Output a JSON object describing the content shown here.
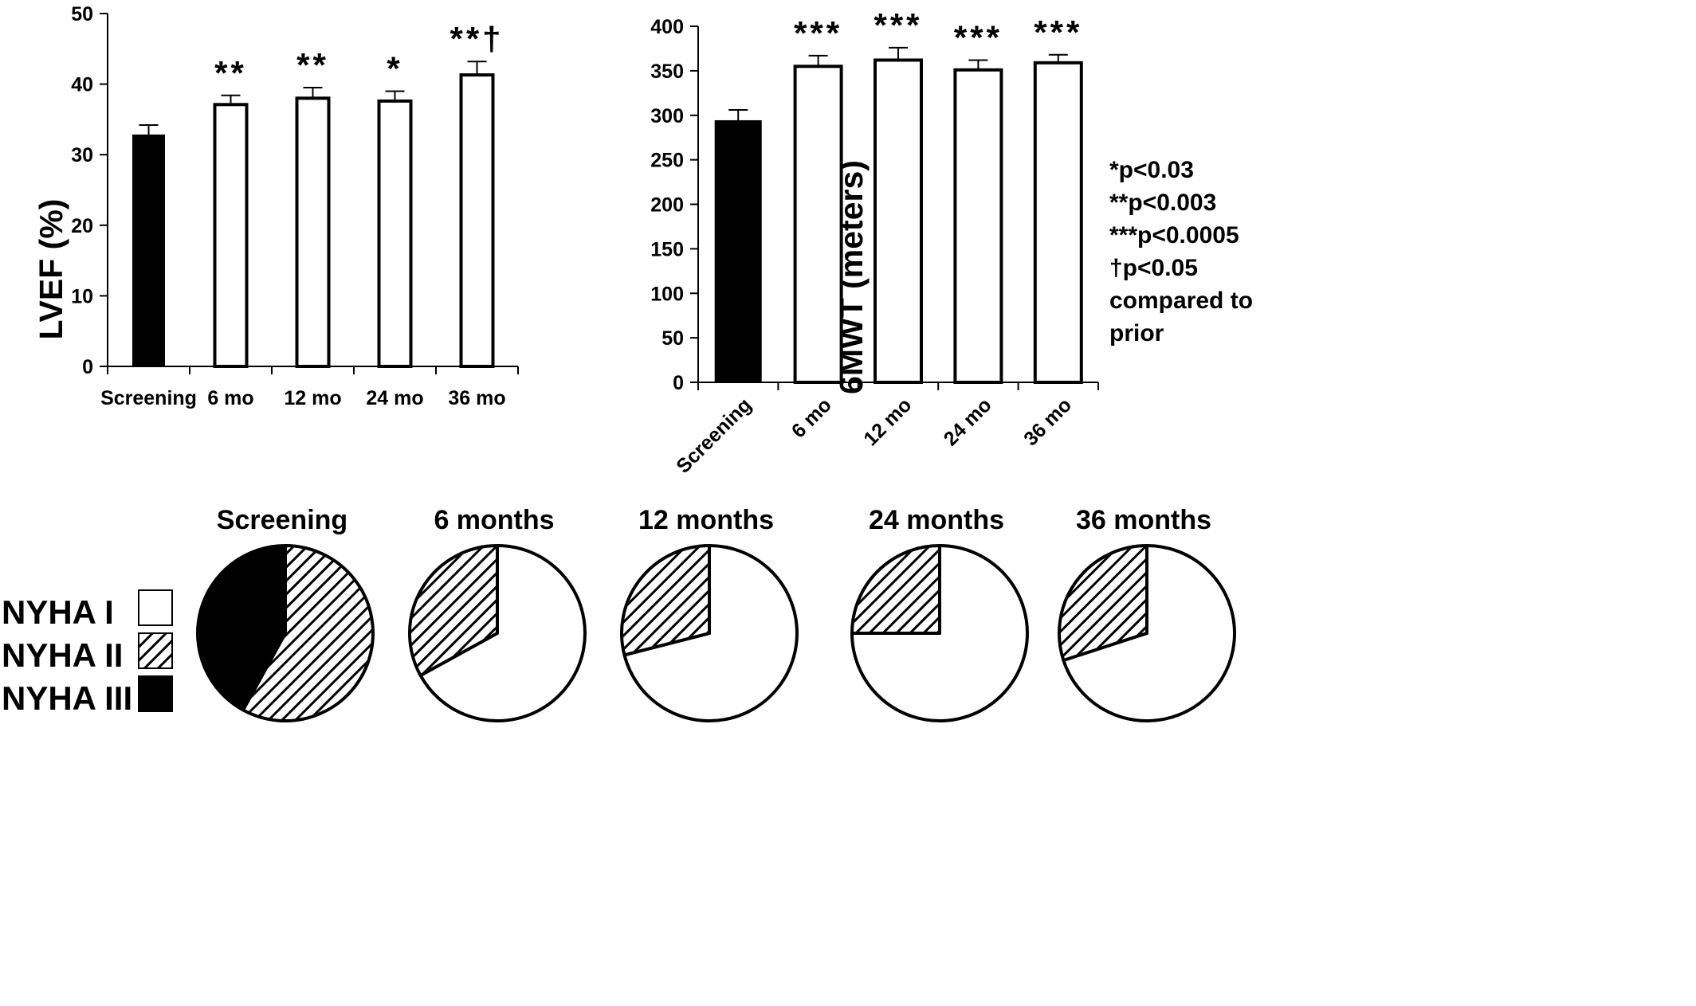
{
  "chart_data": [
    {
      "type": "bar",
      "ylabel": "LVEF (%)",
      "ylim": [
        0,
        50
      ],
      "yticks": [
        "0",
        "10",
        "20",
        "30",
        "40",
        "50"
      ],
      "categories": [
        "Screening",
        "6 mo",
        "12 mo",
        "24 mo",
        "36 mo"
      ],
      "values": [
        32.8,
        37.1,
        38.0,
        37.6,
        41.3
      ],
      "errors": [
        1.4,
        1.3,
        1.5,
        1.4,
        1.9
      ],
      "significance": [
        "",
        "**",
        "**",
        "*",
        "**†"
      ],
      "bar_colors": [
        "#000000",
        "#ffffff",
        "#ffffff",
        "#ffffff",
        "#ffffff"
      ],
      "grid": false
    },
    {
      "type": "bar",
      "ylabel": "6MWT (meters)",
      "ylim": [
        0,
        400
      ],
      "yticks": [
        "0",
        "50",
        "100",
        "150",
        "200",
        "250",
        "300",
        "350",
        "400"
      ],
      "categories": [
        "Screening",
        "6 mo",
        "12 mo",
        "24 mo",
        "36 mo"
      ],
      "values": [
        294,
        355,
        362,
        351,
        359
      ],
      "errors": [
        12,
        12,
        14,
        11,
        9
      ],
      "significance": [
        "",
        "***",
        "***",
        "***",
        "***"
      ],
      "bar_colors": [
        "#000000",
        "#ffffff",
        "#ffffff",
        "#ffffff",
        "#ffffff"
      ],
      "grid": false,
      "tick_rotation": -45
    },
    {
      "type": "pie",
      "title": "Screening",
      "slices": [
        {
          "label": "NYHA I",
          "value": 0
        },
        {
          "label": "NYHA II",
          "value": 58
        },
        {
          "label": "NYHA III",
          "value": 42
        }
      ]
    },
    {
      "type": "pie",
      "title": "6 months",
      "slices": [
        {
          "label": "NYHA I",
          "value": 67
        },
        {
          "label": "NYHA II",
          "value": 33
        },
        {
          "label": "NYHA III",
          "value": 0
        }
      ]
    },
    {
      "type": "pie",
      "title": "12 months",
      "slices": [
        {
          "label": "NYHA I",
          "value": 71
        },
        {
          "label": "NYHA II",
          "value": 29
        },
        {
          "label": "NYHA III",
          "value": 0
        }
      ]
    },
    {
      "type": "pie",
      "title": "24 months",
      "slices": [
        {
          "label": "NYHA I",
          "value": 75
        },
        {
          "label": "NYHA II",
          "value": 25
        },
        {
          "label": "NYHA III",
          "value": 0
        }
      ]
    },
    {
      "type": "pie",
      "title": "36 months",
      "slices": [
        {
          "label": "NYHA I",
          "value": 70
        },
        {
          "label": "NYHA II",
          "value": 30
        },
        {
          "label": "NYHA III",
          "value": 0
        }
      ]
    }
  ],
  "legend": {
    "placement": "bottom-left",
    "items": [
      {
        "label": "NYHA I",
        "fill": "white"
      },
      {
        "label": "NYHA II",
        "fill": "hatched"
      },
      {
        "label": "NYHA III",
        "fill": "black"
      }
    ]
  },
  "significance_notes": [
    "*p<0.03",
    "**p<0.003",
    "***p<0.0005",
    "†p<0.05",
    "compared to",
    "prior"
  ],
  "colors": {
    "black": "#000000",
    "white": "#ffffff"
  }
}
